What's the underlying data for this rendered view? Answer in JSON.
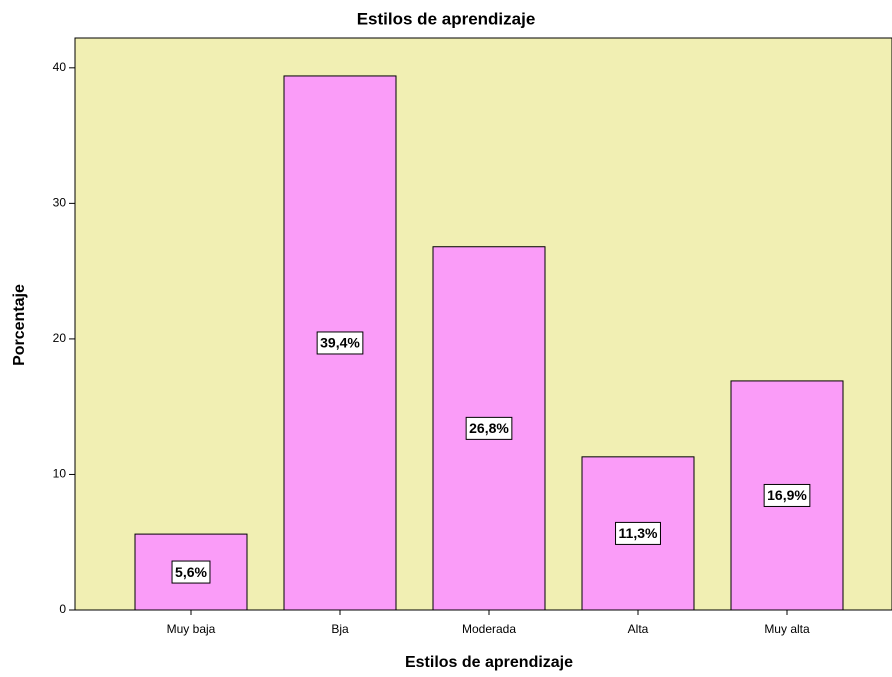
{
  "chart_data": {
    "type": "bar",
    "title": "Estilos de aprendizaje",
    "x_label": "Estilos de aprendizaje",
    "y_label": "Porcentaje",
    "categories": [
      "Muy baja",
      "Bja",
      "Moderada",
      "Alta",
      "Muy alta"
    ],
    "values": [
      5.6,
      39.4,
      26.8,
      11.3,
      16.9
    ],
    "value_labels": [
      "5,6%",
      "39,4%",
      "26,8%",
      "11,3%",
      "16,9%"
    ],
    "color": "#fa9cf8",
    "background": "#f1efb3",
    "ylim": [
      0,
      42.2
    ],
    "yticks": [
      0,
      10,
      20,
      30,
      40
    ],
    "grid": false
  }
}
